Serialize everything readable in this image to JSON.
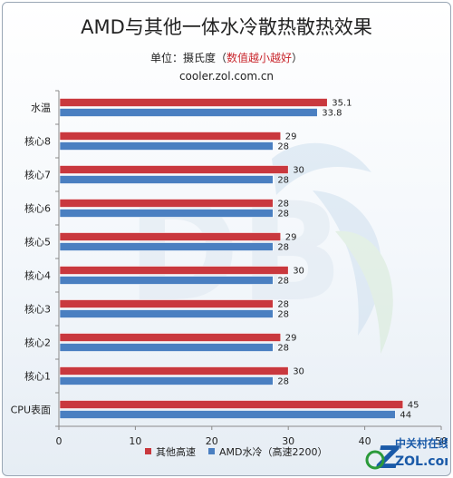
{
  "title": "AMD与其他一体水冷散热散热效果",
  "subtitle": {
    "prefix": "单位：摄氏度（",
    "highlight": "数值越小越好",
    "suffix": "）"
  },
  "source": "cooler.zol.com.cn",
  "watermark": {
    "name": "中关村在线",
    "site": "ZOL.com.cn"
  },
  "colors": {
    "series1": "#c9383e",
    "series2": "#4a7fc1",
    "highlight": "#c9272d"
  },
  "chart_data": {
    "type": "bar",
    "orientation": "horizontal",
    "categories": [
      "水温",
      "核心8",
      "核心7",
      "核心6",
      "核心5",
      "核心4",
      "核心3",
      "核心2",
      "核心1",
      "CPU表面"
    ],
    "series": [
      {
        "name": "其他高速",
        "values": [
          35.1,
          29,
          30,
          28,
          29,
          30,
          28,
          29,
          30,
          45
        ]
      },
      {
        "name": "AMD水冷（高速2200）",
        "values": [
          33.8,
          28,
          28,
          28,
          28,
          28,
          28,
          28,
          28,
          44
        ]
      }
    ],
    "value_labels": [
      [
        "35.1",
        "29",
        "30",
        "28",
        "29",
        "30",
        "28",
        "29",
        "30",
        "45"
      ],
      [
        "33.8",
        "28",
        "28",
        "28",
        "28",
        "28",
        "28",
        "28",
        "28",
        "44"
      ]
    ],
    "xlim": [
      0,
      50
    ],
    "xticks": [
      "0",
      "10",
      "20",
      "30",
      "40",
      "50"
    ],
    "legend_position": "bottom",
    "grid": false
  }
}
